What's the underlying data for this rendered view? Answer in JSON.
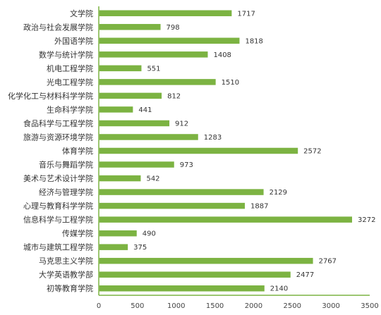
{
  "chart_data": {
    "type": "bar",
    "orientation": "horizontal",
    "categories": [
      "文学院",
      "政治与社会发展学院",
      "外国语学院",
      "数学与统计学院",
      "机电工程学院",
      "光电工程学院",
      "化学化工与材料科学学院",
      "生命科学学院",
      "食品科学与工程学院",
      "旅游与资源环境学院",
      "体育学院",
      "音乐与舞蹈学院",
      "美术与艺术设计学院",
      "经济与管理学院",
      "心理与教育科学学院",
      "信息科学与工程学院",
      "传媒学院",
      "城市与建筑工程学院",
      "马克思主义学院",
      "大学英语教学部",
      "初等教育学院"
    ],
    "values": [
      1717,
      798,
      1818,
      1408,
      551,
      1510,
      812,
      441,
      912,
      1283,
      2572,
      973,
      542,
      2129,
      1887,
      3272,
      490,
      375,
      2767,
      2477,
      2140
    ],
    "xlim": [
      0,
      3500
    ],
    "xticks": [
      0,
      500,
      1000,
      1500,
      2000,
      2500,
      3000,
      3500
    ],
    "title": "",
    "xlabel": "",
    "ylabel": "",
    "grid": false,
    "legend": "none",
    "bar_color": "#7cb342",
    "axis_color": "#7cb342"
  }
}
